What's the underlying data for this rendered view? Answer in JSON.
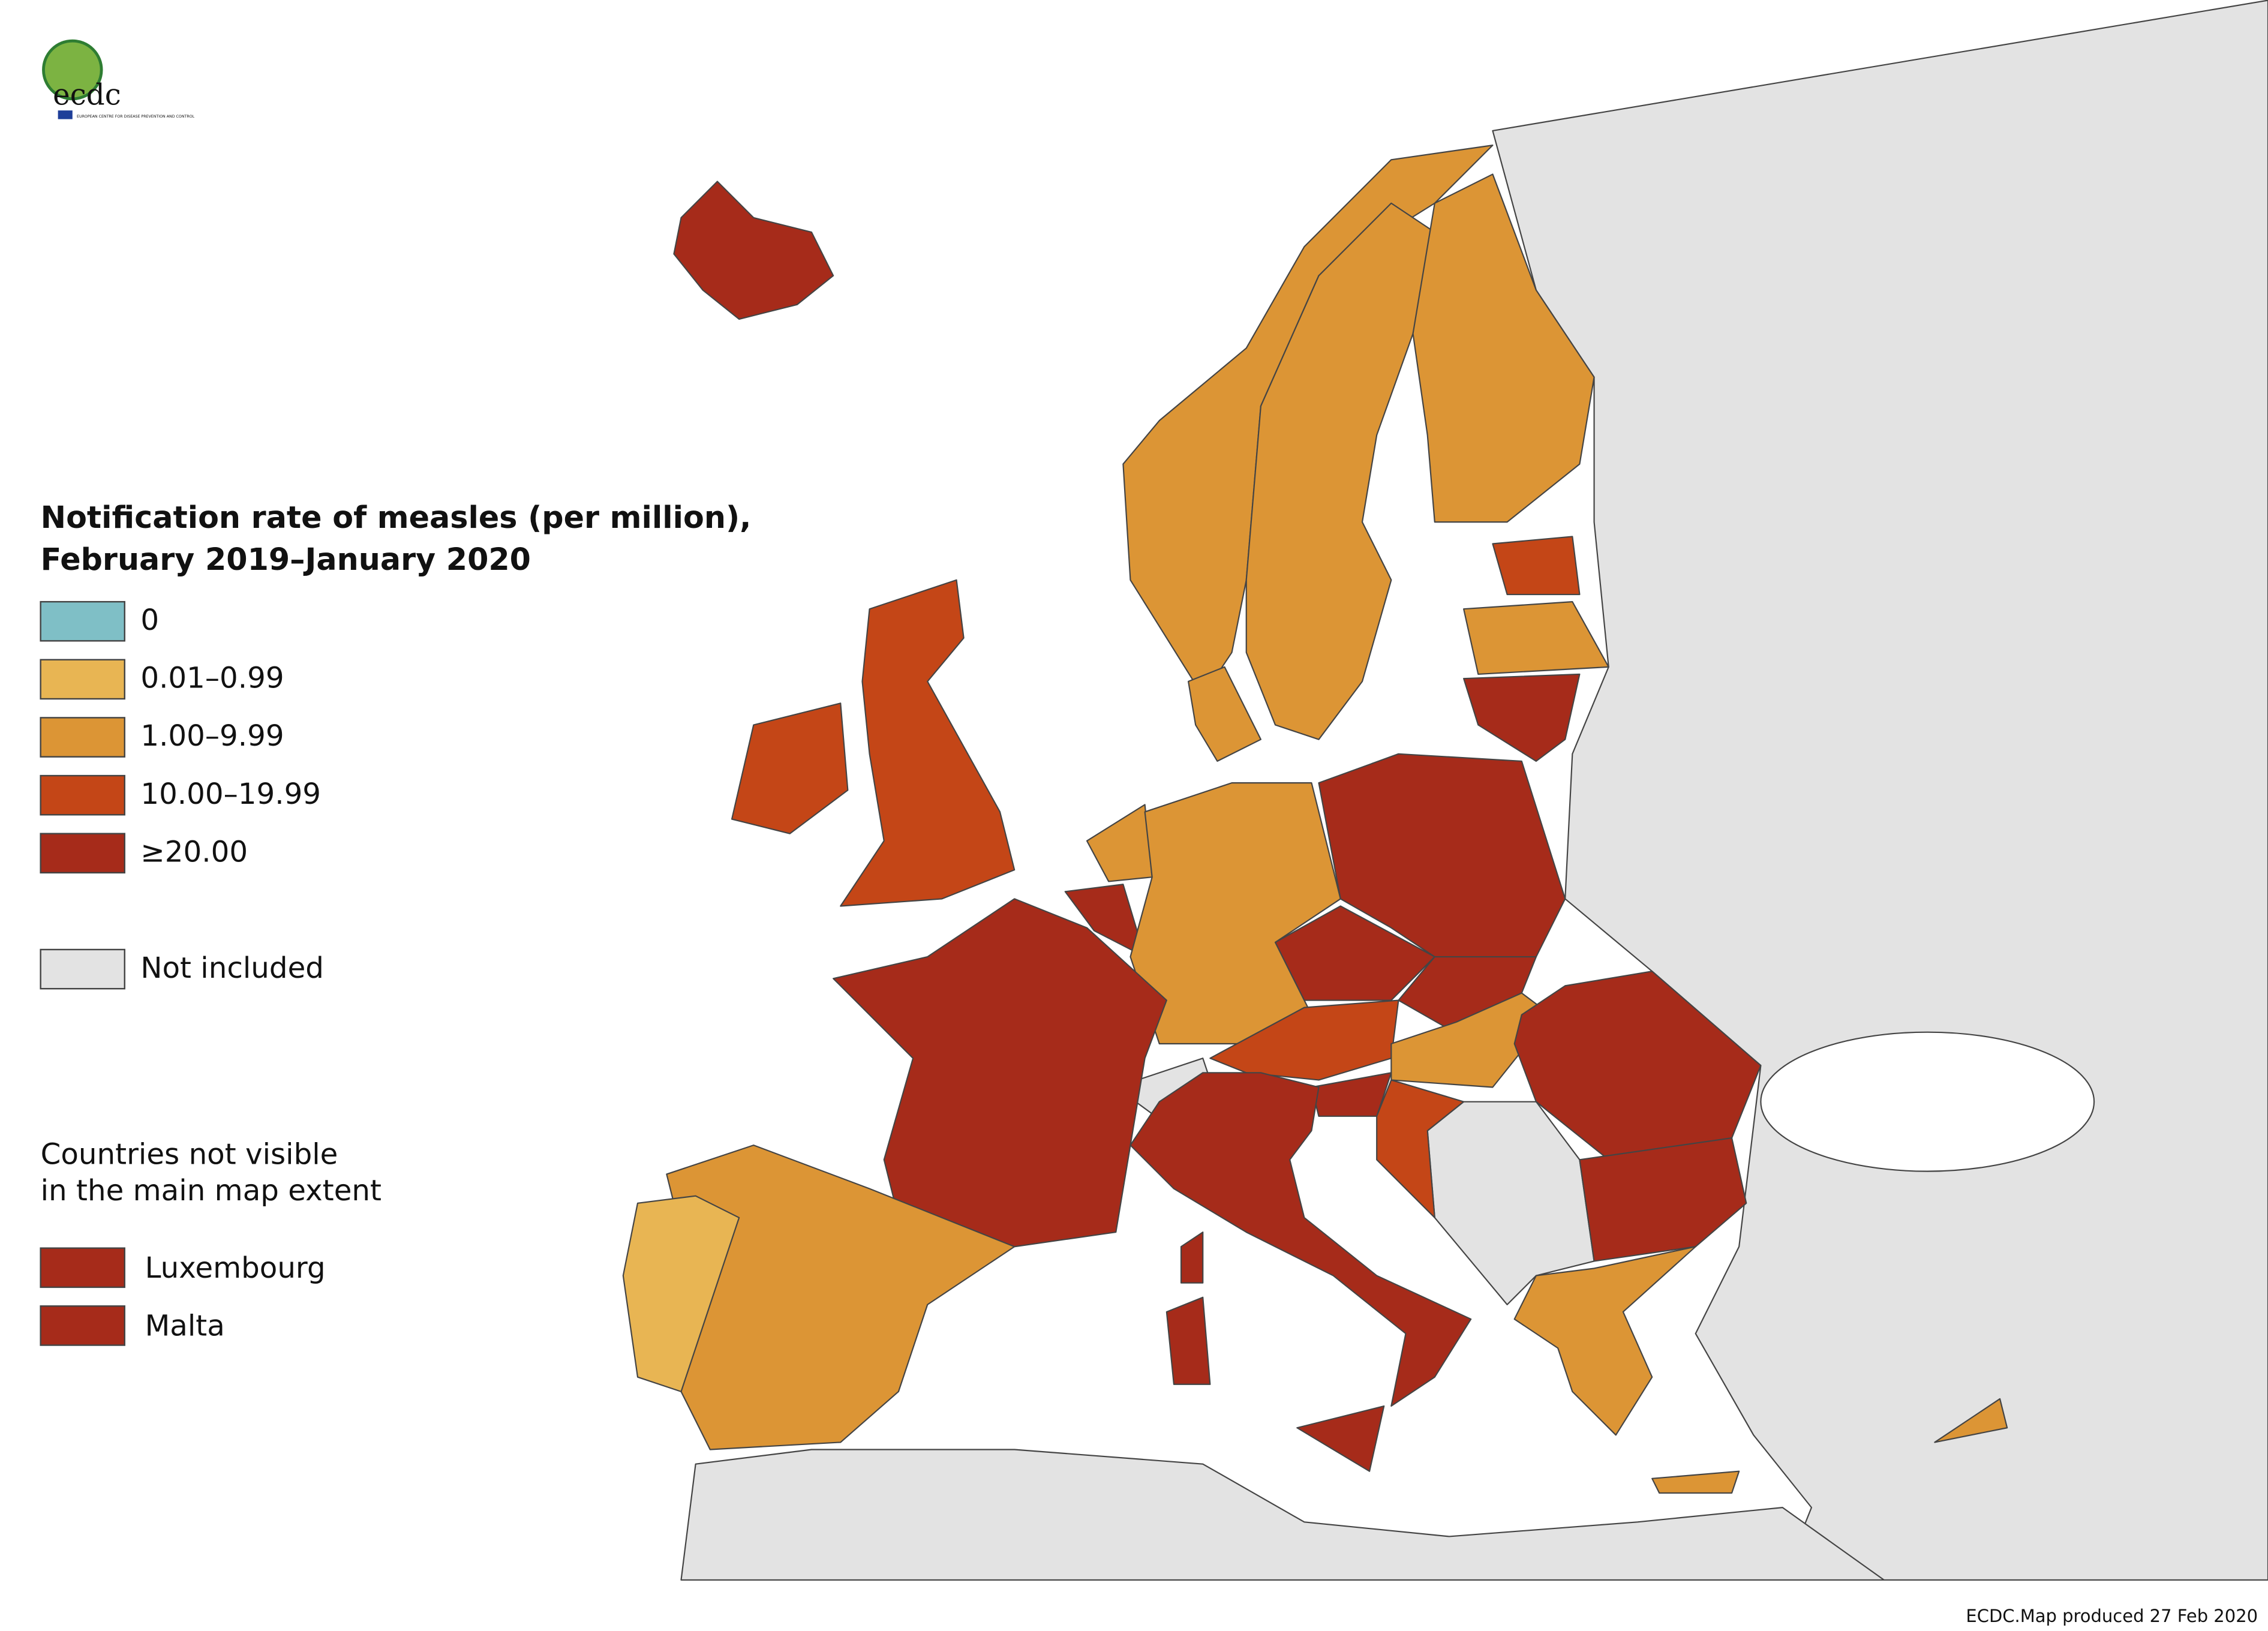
{
  "logo": {
    "name": "ecdc",
    "subtitle": "EUROPEAN CENTRE FOR DISEASE PREVENTION AND CONTROL"
  },
  "legend": {
    "title": [
      "Notification rate of measles (per million),",
      "February 2019–January 2020"
    ],
    "items": [
      {
        "label": "0",
        "color": "#7fbfc6"
      },
      {
        "label": "0.01–0.99",
        "color": "#e8b553"
      },
      {
        "label": "1.00–9.99",
        "color": "#dc9535"
      },
      {
        "label": "10.00–19.99",
        "color": "#c44617"
      },
      {
        "label": "≥20.00",
        "color": "#a62b1a"
      },
      {
        "label": "Not included",
        "color": "#e3e3e3"
      }
    ],
    "note": [
      "Countries not visible",
      "in the main map extent"
    ],
    "extra_items": [
      {
        "label": "Luxembourg",
        "color": "#a62b1a"
      },
      {
        "label": "Malta",
        "color": "#a62b1a"
      }
    ]
  },
  "footer": "ECDC.Map produced 27 Feb 2020"
}
